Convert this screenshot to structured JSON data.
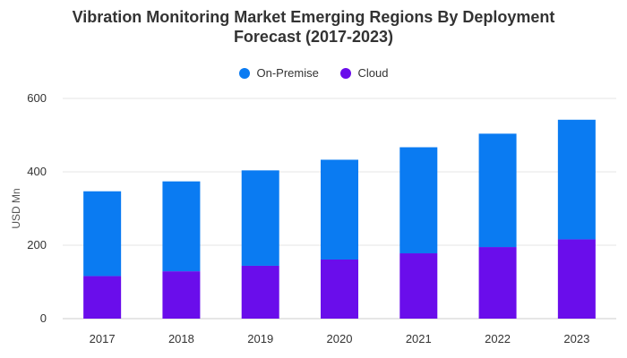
{
  "title_line1": "Vibration Monitoring Market Emerging Regions By Deployment",
  "title_line2": "Forecast (2017-2023)",
  "colors": {
    "on_premise": "#0A7BF2",
    "cloud": "#6A0DEB"
  },
  "chart_data": {
    "type": "bar",
    "stacked": true,
    "title": "Vibration Monitoring Market Emerging Regions By Deployment Forecast (2017-2023)",
    "categories": [
      "2017",
      "2018",
      "2019",
      "2020",
      "2021",
      "2022",
      "2023"
    ],
    "series": [
      {
        "name": "Cloud",
        "values": [
          116,
          129,
          144,
          161,
          178,
          195,
          216
        ]
      },
      {
        "name": "On-Premise",
        "values": [
          231,
          245,
          260,
          272,
          289,
          309,
          326
        ]
      }
    ],
    "ylabel": "USD Mn",
    "xlabel": "",
    "ylim": [
      0,
      600
    ],
    "yticks": [
      0,
      200,
      400,
      600
    ],
    "grid": true,
    "legend": "top-center"
  }
}
